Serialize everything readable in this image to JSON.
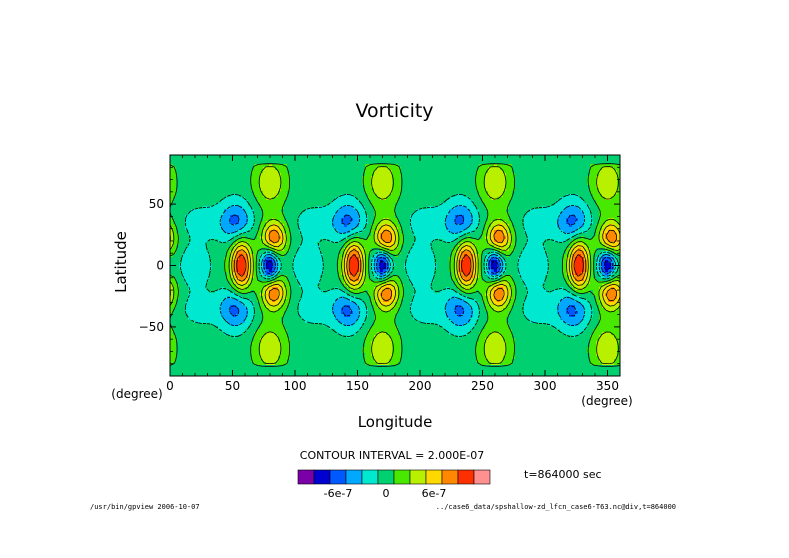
{
  "chart_data": {
    "type": "heatmap",
    "title": "Vorticity",
    "xlabel": "Longitude",
    "ylabel": "Latitude",
    "x_unit_left": "(degree)",
    "x_unit_right": "(degree)",
    "xlim": [
      0,
      360
    ],
    "ylim": [
      -90,
      90
    ],
    "x_ticks": [
      0,
      50,
      100,
      150,
      200,
      250,
      300,
      350
    ],
    "y_ticks": [
      -50,
      0,
      50
    ],
    "x_tick_labels": [
      "0",
      "50",
      "100",
      "150",
      "200",
      "250",
      "300",
      "350"
    ],
    "y_tick_labels": [
      "−50",
      "0",
      "50"
    ],
    "contour_interval_text": "CONTOUR INTERVAL = 2.000E-07",
    "contour_interval": 2e-07,
    "time_text": "t=864000 sec",
    "colorbar": {
      "levels": [
        -1e-06,
        -8e-07,
        -6e-07,
        -4e-07,
        -2e-07,
        0,
        2e-07,
        4e-07,
        6e-07,
        8e-07,
        1e-06,
        1.2e-06
      ],
      "colors": [
        "#7b00a8",
        "#0000d0",
        "#0058ff",
        "#00a8ff",
        "#00e8d0",
        "#00d070",
        "#48e800",
        "#b8f000",
        "#ffd800",
        "#ff8800",
        "#ff3000",
        "#ff9090"
      ],
      "tick_labels": [
        "-6e-7",
        "0",
        "6e-7"
      ],
      "tick_values": [
        -6e-07,
        0,
        6e-07
      ]
    },
    "features": [
      {
        "lon": 57,
        "lat": 0,
        "kind": "positive-max",
        "value": 1.1e-06
      },
      {
        "lon": 80,
        "lat": 0,
        "kind": "negative-min",
        "value": -1e-06
      },
      {
        "lon": 83,
        "lat": 22,
        "kind": "positive",
        "value": 9e-07
      },
      {
        "lon": 83,
        "lat": -22,
        "kind": "positive",
        "value": 9e-07
      },
      {
        "lon": 53,
        "lat": 35,
        "kind": "negative",
        "value": -6e-07
      },
      {
        "lon": 53,
        "lat": -35,
        "kind": "negative",
        "value": -6e-07
      },
      {
        "lon": 80,
        "lat": 68,
        "kind": "positive",
        "value": 5e-07
      },
      {
        "lon": 80,
        "lat": -68,
        "kind": "positive",
        "value": 5e-07
      },
      {
        "lon": 20,
        "lat": 0,
        "kind": "negative",
        "value": -3e-07
      },
      {
        "lon": 25,
        "lat": 35,
        "kind": "negative-weak",
        "value": -2e-07
      },
      {
        "lon": 25,
        "lat": -35,
        "kind": "negative-weak",
        "value": -2e-07
      }
    ],
    "wave_period_deg": 90,
    "grid": false,
    "legend": "bottom"
  },
  "footer": {
    "left": "/usr/bin/gpview  2006-10-07",
    "right": "../case6_data/spshallow-zd_lfcn_case6-T63.nc@div,t=864000"
  }
}
